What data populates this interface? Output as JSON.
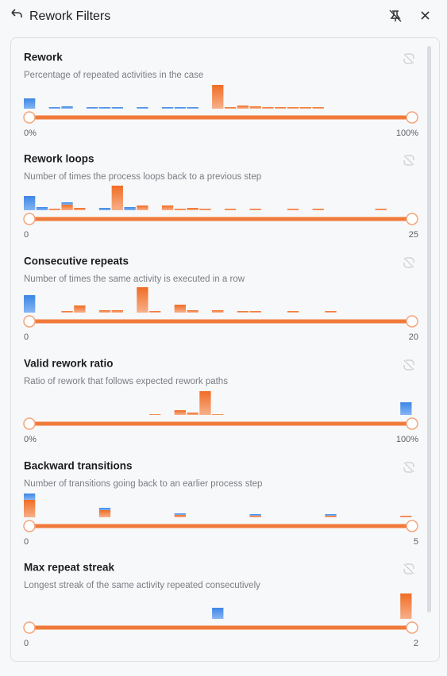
{
  "header": {
    "title": "Rework Filters"
  },
  "filters": [
    {
      "title": "Rework",
      "description": "Percentage of repeated activities in the case",
      "min_label": "0%",
      "max_label": "100%",
      "blue": [
        13,
        0,
        2,
        3,
        0,
        2,
        2,
        2,
        0,
        2,
        0,
        2,
        2,
        2,
        0,
        0,
        0,
        0,
        0,
        0,
        0,
        0,
        0,
        0,
        0,
        0,
        0,
        0,
        0,
        0,
        0
      ],
      "orange": [
        0,
        0,
        0,
        0,
        0,
        0,
        0,
        0,
        0,
        0,
        0,
        0,
        0,
        0,
        0,
        30,
        2,
        4,
        3,
        2,
        2,
        2,
        2,
        2,
        0,
        0,
        0,
        0,
        0,
        0,
        0
      ]
    },
    {
      "title": "Rework loops",
      "description": "Number of times the process loops back to a previous step",
      "min_label": "0",
      "max_label": "25",
      "blue": [
        18,
        4,
        0,
        3,
        0,
        0,
        3,
        0,
        4,
        0,
        0,
        0,
        0,
        0,
        0,
        0,
        0,
        0,
        0,
        0,
        0,
        0,
        0,
        0,
        0,
        0,
        0,
        0,
        0,
        0,
        0
      ],
      "orange": [
        0,
        0,
        2,
        7,
        3,
        0,
        0,
        31,
        0,
        6,
        0,
        6,
        2,
        3,
        2,
        0,
        2,
        0,
        2,
        0,
        0,
        2,
        0,
        2,
        0,
        0,
        0,
        0,
        2,
        0,
        0
      ]
    },
    {
      "title": "Consecutive repeats",
      "description": "Number of times the same activity is executed in a row",
      "min_label": "0",
      "max_label": "20",
      "blue": [
        22,
        0,
        0,
        0,
        0,
        0,
        0,
        0,
        0,
        0,
        0,
        0,
        0,
        0,
        0,
        0,
        0,
        0,
        0,
        0,
        0,
        0,
        0,
        0,
        0,
        0,
        0,
        0,
        0,
        0,
        0
      ],
      "orange": [
        0,
        0,
        0,
        2,
        9,
        0,
        3,
        3,
        0,
        32,
        2,
        0,
        10,
        3,
        0,
        3,
        0,
        2,
        2,
        0,
        0,
        2,
        0,
        0,
        2,
        0,
        0,
        0,
        0,
        0,
        0
      ]
    },
    {
      "title": "Valid rework ratio",
      "description": "Ratio of rework that follows expected rework paths",
      "min_label": "0%",
      "max_label": "100%",
      "blue": [
        0,
        0,
        0,
        0,
        0,
        0,
        0,
        0,
        0,
        0,
        0,
        0,
        0,
        0,
        0,
        0,
        0,
        0,
        0,
        0,
        0,
        0,
        0,
        0,
        0,
        0,
        0,
        0,
        0,
        0,
        16
      ],
      "orange": [
        0,
        0,
        0,
        0,
        0,
        0,
        0,
        0,
        0,
        0,
        1,
        0,
        6,
        3,
        30,
        1,
        0,
        0,
        0,
        0,
        0,
        0,
        0,
        0,
        0,
        0,
        0,
        0,
        0,
        0,
        0
      ]
    },
    {
      "title": "Backward transitions",
      "description": "Number of transitions going back to an earlier process step",
      "min_label": "0",
      "max_label": "5",
      "blue": [
        8,
        0,
        0,
        0,
        0,
        0,
        3,
        0,
        0,
        0,
        0,
        0,
        2,
        0,
        0,
        0,
        0,
        0,
        2,
        0,
        0,
        0,
        0,
        0,
        2,
        0,
        0,
        0,
        0,
        0,
        0
      ],
      "orange": [
        22,
        0,
        0,
        0,
        0,
        0,
        9,
        0,
        0,
        0,
        0,
        0,
        3,
        0,
        0,
        0,
        0,
        0,
        2,
        0,
        0,
        0,
        0,
        0,
        2,
        0,
        0,
        0,
        0,
        0,
        2
      ]
    },
    {
      "title": "Max repeat streak",
      "description": "Longest streak of the same activity repeated consecutively",
      "min_label": "0",
      "max_label": "2",
      "blue": [
        0,
        0,
        0,
        0,
        0,
        0,
        0,
        0,
        0,
        0,
        0,
        0,
        0,
        0,
        0,
        14,
        0,
        0,
        0,
        0,
        0,
        0,
        0,
        0,
        0,
        0,
        0,
        0,
        0,
        0,
        0
      ],
      "orange": [
        0,
        0,
        0,
        0,
        0,
        0,
        0,
        0,
        0,
        0,
        0,
        0,
        0,
        0,
        0,
        0,
        0,
        0,
        0,
        0,
        0,
        0,
        0,
        0,
        0,
        0,
        0,
        0,
        0,
        0,
        32
      ]
    }
  ]
}
